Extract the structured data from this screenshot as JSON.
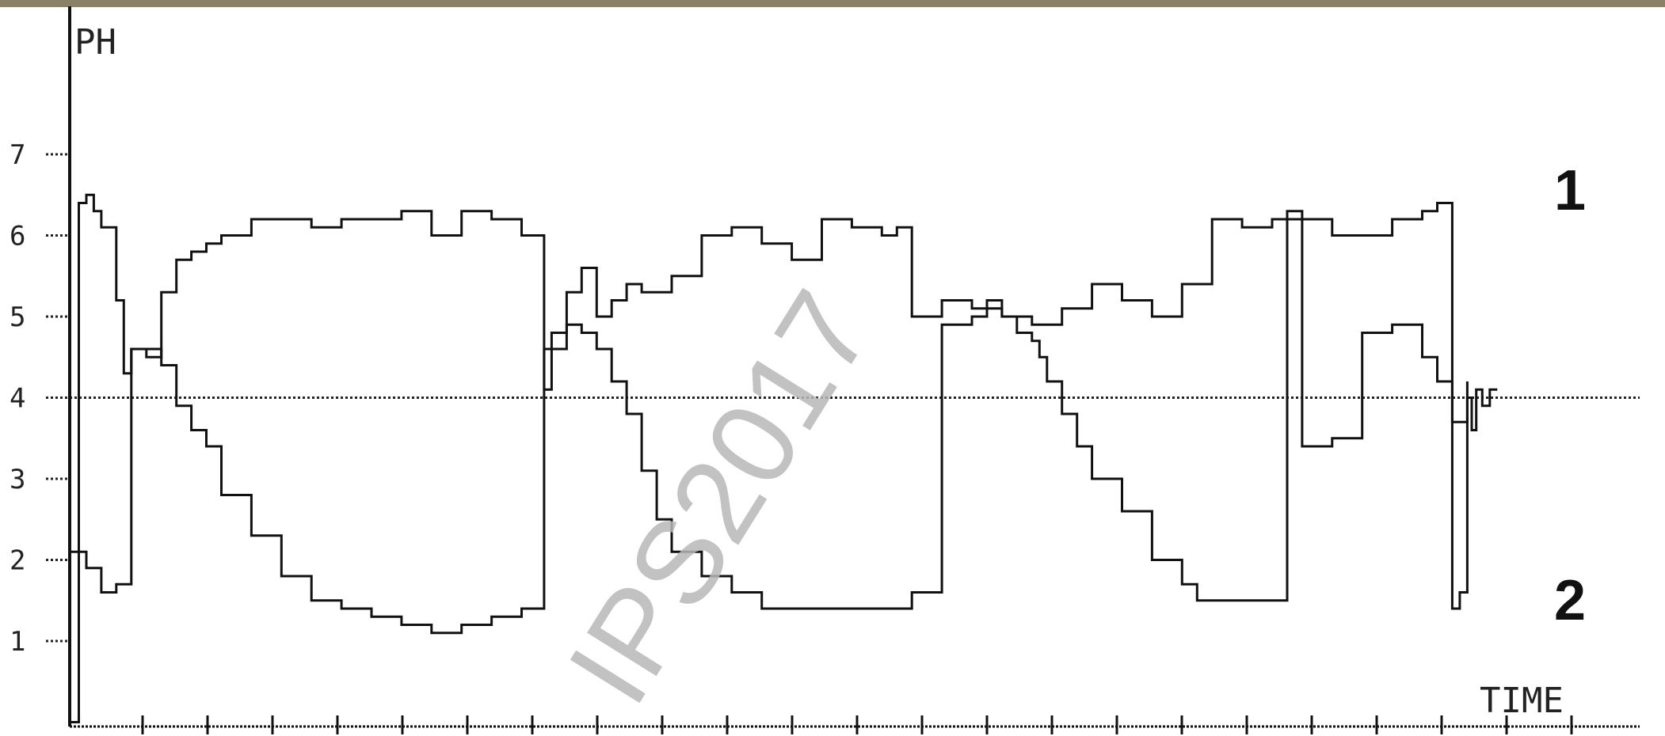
{
  "colors": {
    "topbar": "#8a8268",
    "ink": "#111111",
    "watermark": "#b8b8b8"
  },
  "watermark_text": "IPS2017",
  "chart_data": {
    "type": "line",
    "title": "",
    "ylabel": "PH",
    "xlabel": "TIME",
    "ylim": [
      0,
      8
    ],
    "xlim": [
      0,
      100
    ],
    "yticks": [
      1,
      2,
      3,
      4,
      5,
      6,
      7
    ],
    "x_tick_count": 24,
    "reference_line": {
      "y": 4.0,
      "style": "dotted"
    },
    "grid": false,
    "series": [
      {
        "name": "1",
        "x": [
          0,
          0.5,
          1,
          1.5,
          2,
          2.5,
          3,
          3.5,
          4,
          5,
          6,
          7,
          8,
          9,
          10,
          12,
          14,
          16,
          18,
          20,
          22,
          24,
          26,
          28,
          30,
          31,
          31.5,
          32,
          33,
          34,
          35,
          36,
          37,
          38,
          39,
          40,
          42,
          44,
          46,
          48,
          50,
          52,
          54,
          56,
          58,
          60,
          61,
          62,
          63,
          64,
          64.5,
          65,
          66,
          67,
          68,
          70,
          72,
          74,
          75,
          76,
          78,
          80,
          81,
          82,
          84,
          86,
          88,
          90,
          91,
          92,
          93,
          93.3,
          93.6,
          94,
          94.5,
          95
        ],
        "values": [
          0,
          6.4,
          6.5,
          6.3,
          6.1,
          6.1,
          5.2,
          4.3,
          4.6,
          4.6,
          4.4,
          3.9,
          3.6,
          3.4,
          2.8,
          2.3,
          1.8,
          1.5,
          1.4,
          1.3,
          1.2,
          1.1,
          1.2,
          1.3,
          1.4,
          1.4,
          4.6,
          4.8,
          4.9,
          4.8,
          4.6,
          4.2,
          3.8,
          3.1,
          2.5,
          2.1,
          1.8,
          1.6,
          1.4,
          1.4,
          1.4,
          1.4,
          1.4,
          1.6,
          4.9,
          5.0,
          5.2,
          5.0,
          4.8,
          4.7,
          4.5,
          4.2,
          3.8,
          3.4,
          3.0,
          2.6,
          2.0,
          1.7,
          1.5,
          1.5,
          1.5,
          1.5,
          6.3,
          3.4,
          3.5,
          4.8,
          4.9,
          4.5,
          4.2,
          3.7,
          4.0,
          3.6,
          4.1,
          3.9,
          4.1,
          4.1
        ]
      },
      {
        "name": "2",
        "x": [
          0,
          1,
          2,
          3,
          4,
          5,
          6,
          7,
          8,
          9,
          10,
          12,
          14,
          16,
          18,
          20,
          22,
          24,
          26,
          28,
          30,
          31,
          31.5,
          32,
          33,
          34,
          35,
          36,
          37,
          38,
          40,
          42,
          44,
          46,
          48,
          50,
          52,
          54,
          55,
          56,
          58,
          60,
          62,
          64,
          66,
          68,
          70,
          72,
          74,
          76,
          78,
          80,
          82,
          84,
          86,
          88,
          90,
          91,
          92,
          92.5,
          93
        ],
        "values": [
          2.1,
          1.9,
          1.6,
          1.7,
          4.6,
          4.5,
          5.3,
          5.7,
          5.8,
          5.9,
          6.0,
          6.2,
          6.2,
          6.1,
          6.2,
          6.2,
          6.3,
          6.0,
          6.3,
          6.2,
          6.0,
          6.0,
          4.1,
          4.6,
          5.3,
          5.6,
          5.0,
          5.2,
          5.4,
          5.3,
          5.5,
          6.0,
          6.1,
          5.9,
          5.7,
          6.2,
          6.1,
          6.0,
          6.1,
          5.0,
          5.2,
          5.1,
          5.0,
          4.9,
          5.1,
          5.4,
          5.2,
          5.0,
          5.4,
          6.2,
          6.1,
          6.2,
          6.2,
          6.0,
          6.0,
          6.2,
          6.3,
          6.4,
          1.4,
          1.6,
          4.2
        ]
      }
    ]
  }
}
